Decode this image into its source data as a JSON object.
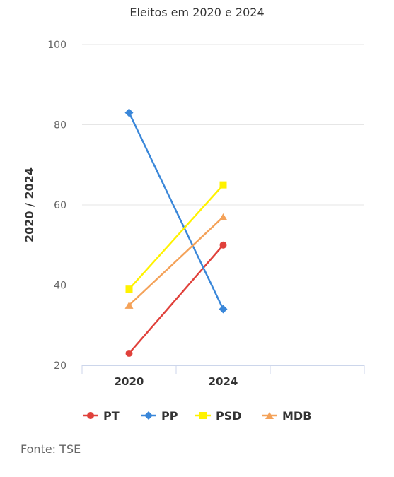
{
  "chart_data": {
    "type": "line",
    "title": "Eleitos em 2020 e 2024",
    "ylabel": "2020 / 2024",
    "xlabel": "",
    "categories": [
      "2020",
      "2024"
    ],
    "ylim": [
      20,
      100
    ],
    "yticks": [
      20,
      40,
      60,
      80,
      100
    ],
    "grid": true,
    "legend_placement": "bottom",
    "series": [
      {
        "name": "PT",
        "values": [
          23,
          50
        ],
        "color": "#e0413b",
        "marker": "circle"
      },
      {
        "name": "PP",
        "values": [
          83,
          34
        ],
        "color": "#3a87d9",
        "marker": "diamond"
      },
      {
        "name": "PSD",
        "values": [
          39,
          65
        ],
        "color": "#fff200",
        "marker": "square"
      },
      {
        "name": "MDB",
        "values": [
          35,
          57
        ],
        "color": "#f4a259",
        "marker": "triangle"
      }
    ]
  },
  "source": "Fonte: TSE"
}
